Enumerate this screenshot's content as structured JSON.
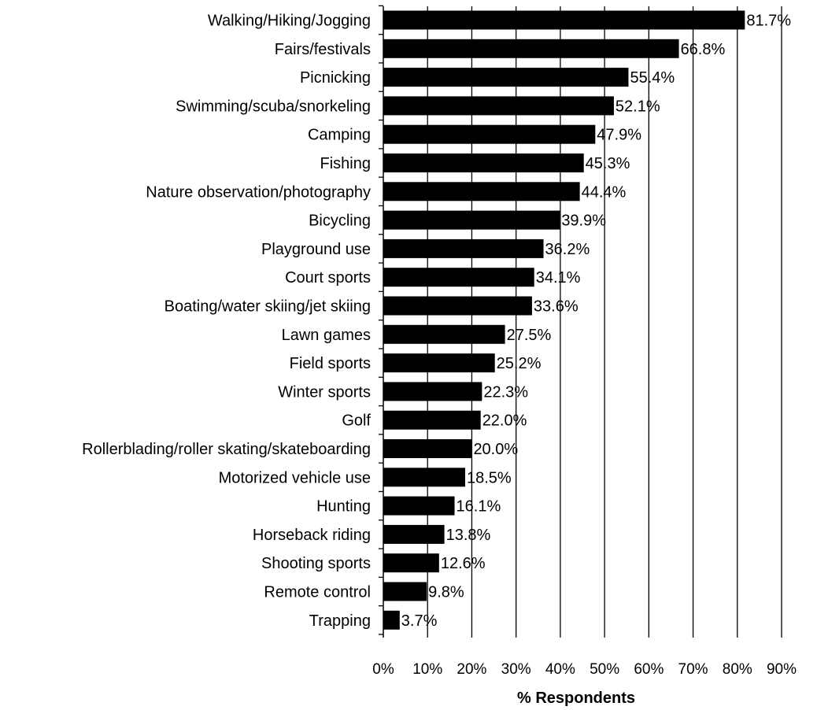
{
  "chart_data": {
    "type": "bar",
    "orientation": "horizontal",
    "categories": [
      "Walking/Hiking/Jogging",
      "Fairs/festivals",
      "Picnicking",
      "Swimming/scuba/snorkeling",
      "Camping",
      "Fishing",
      "Nature observation/photography",
      "Bicycling",
      "Playground use",
      "Court sports",
      "Boating/water skiing/jet skiing",
      "Lawn games",
      "Field sports",
      "Winter sports",
      "Golf",
      "Rollerblading/roller skating/skateboarding",
      "Motorized vehicle use",
      "Hunting",
      "Horseback riding",
      "Shooting sports",
      "Remote control",
      "Trapping"
    ],
    "values": [
      81.7,
      66.8,
      55.4,
      52.1,
      47.9,
      45.3,
      44.4,
      39.9,
      36.2,
      34.1,
      33.6,
      27.5,
      25.2,
      22.3,
      22.0,
      20.0,
      18.5,
      16.1,
      13.8,
      12.6,
      9.8,
      3.7
    ],
    "value_labels": [
      "81.7%",
      "66.8%",
      "55.4%",
      "52.1%",
      "47.9%",
      "45.3%",
      "44.4%",
      "39.9%",
      "36.2%",
      "34.1%",
      "33.6%",
      "27.5%",
      "25.2%",
      "22.3%",
      "22.0%",
      "20.0%",
      "18.5%",
      "16.1%",
      "13.8%",
      "12.6%",
      "9.8%",
      "3.7%"
    ],
    "xlabel": "% Respondents",
    "xlim": [
      0,
      90
    ],
    "x_ticks": [
      0,
      10,
      20,
      30,
      40,
      50,
      60,
      70,
      80,
      90
    ],
    "x_tick_labels": [
      "0%",
      "10%",
      "20%",
      "30%",
      "40%",
      "50%",
      "60%",
      "70%",
      "80%",
      "90%"
    ],
    "grid": "vertical",
    "bar_color": "#000000",
    "gridline_color": "#000000"
  }
}
